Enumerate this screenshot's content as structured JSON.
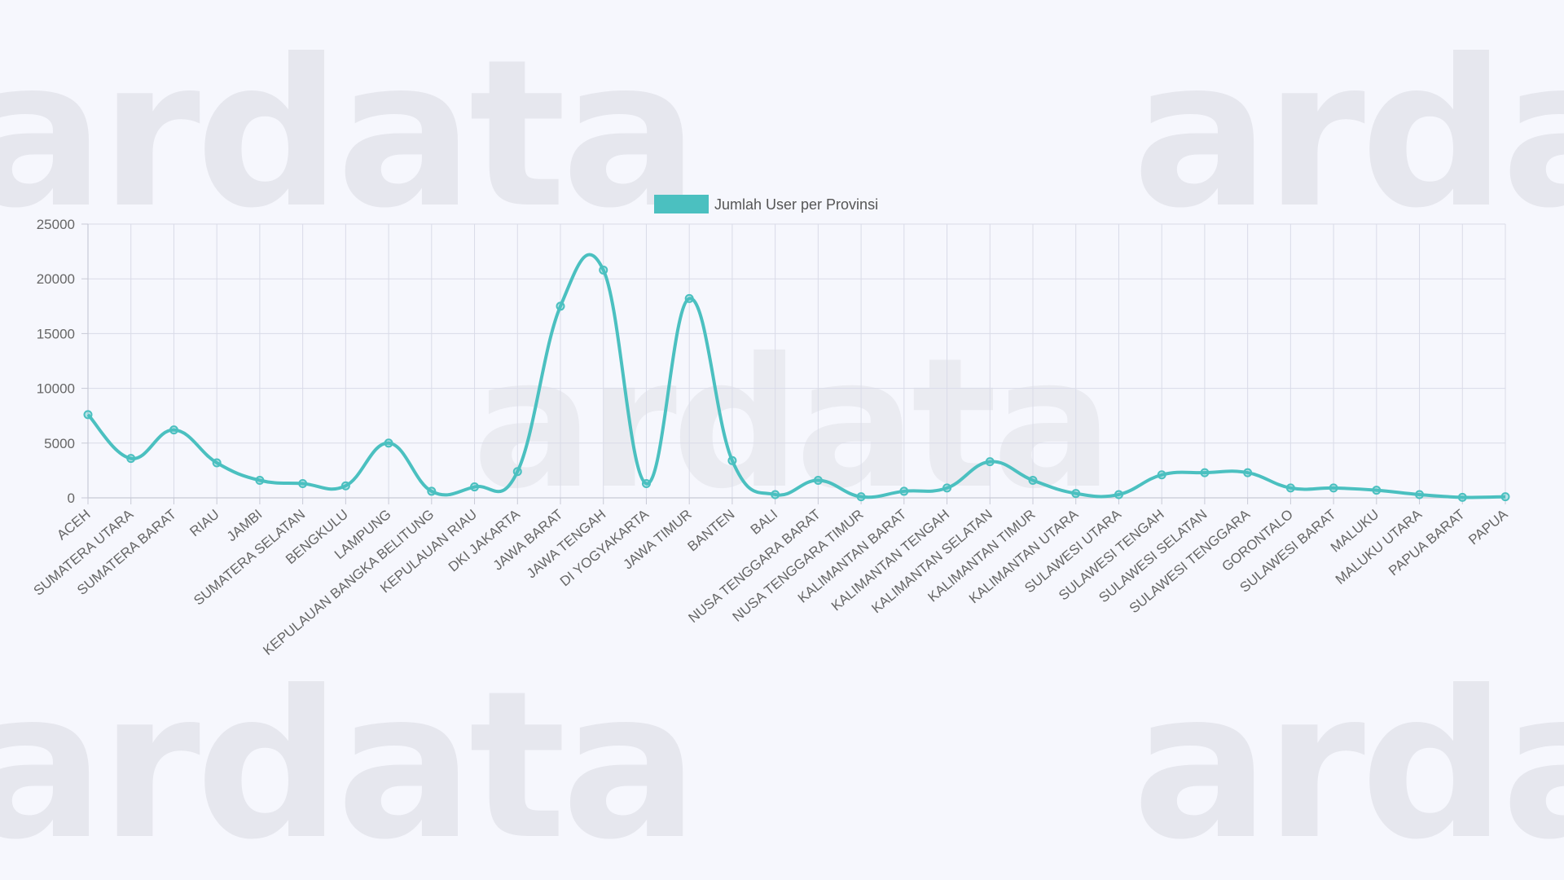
{
  "watermark": {
    "text": "ardata"
  },
  "chart_data": {
    "type": "line",
    "title": "",
    "xlabel": "",
    "ylabel": "",
    "ylim": [
      0,
      25000
    ],
    "yticks": [
      0,
      5000,
      10000,
      15000,
      20000,
      25000
    ],
    "grid": true,
    "legend_position": "top-center",
    "color": "#4bc0c0",
    "categories": [
      "ACEH",
      "SUMATERA UTARA",
      "SUMATERA BARAT",
      "RIAU",
      "JAMBI",
      "SUMATERA SELATAN",
      "BENGKULU",
      "LAMPUNG",
      "KEPULAUAN BANGKA BELITUNG",
      "KEPULAUAN RIAU",
      "DKI JAKARTA",
      "JAWA BARAT",
      "JAWA TENGAH",
      "DI YOGYAKARTA",
      "JAWA TIMUR",
      "BANTEN",
      "BALI",
      "NUSA TENGGARA BARAT",
      "NUSA TENGGARA TIMUR",
      "KALIMANTAN BARAT",
      "KALIMANTAN TENGAH",
      "KALIMANTAN SELATAN",
      "KALIMANTAN TIMUR",
      "KALIMANTAN UTARA",
      "SULAWESI UTARA",
      "SULAWESI TENGAH",
      "SULAWESI SELATAN",
      "SULAWESI TENGGARA",
      "GORONTALO",
      "SULAWESI BARAT",
      "MALUKU",
      "MALUKU UTARA",
      "PAPUA BARAT",
      "PAPUA"
    ],
    "series": [
      {
        "name": "Jumlah User per Provinsi",
        "values": [
          7600,
          3600,
          6200,
          3200,
          1600,
          1300,
          1100,
          5000,
          600,
          1000,
          2400,
          17500,
          20800,
          1300,
          18200,
          3400,
          300,
          1600,
          100,
          600,
          900,
          3300,
          1600,
          400,
          300,
          2100,
          2300,
          2300,
          900,
          900,
          700,
          300,
          50,
          100
        ]
      }
    ]
  }
}
